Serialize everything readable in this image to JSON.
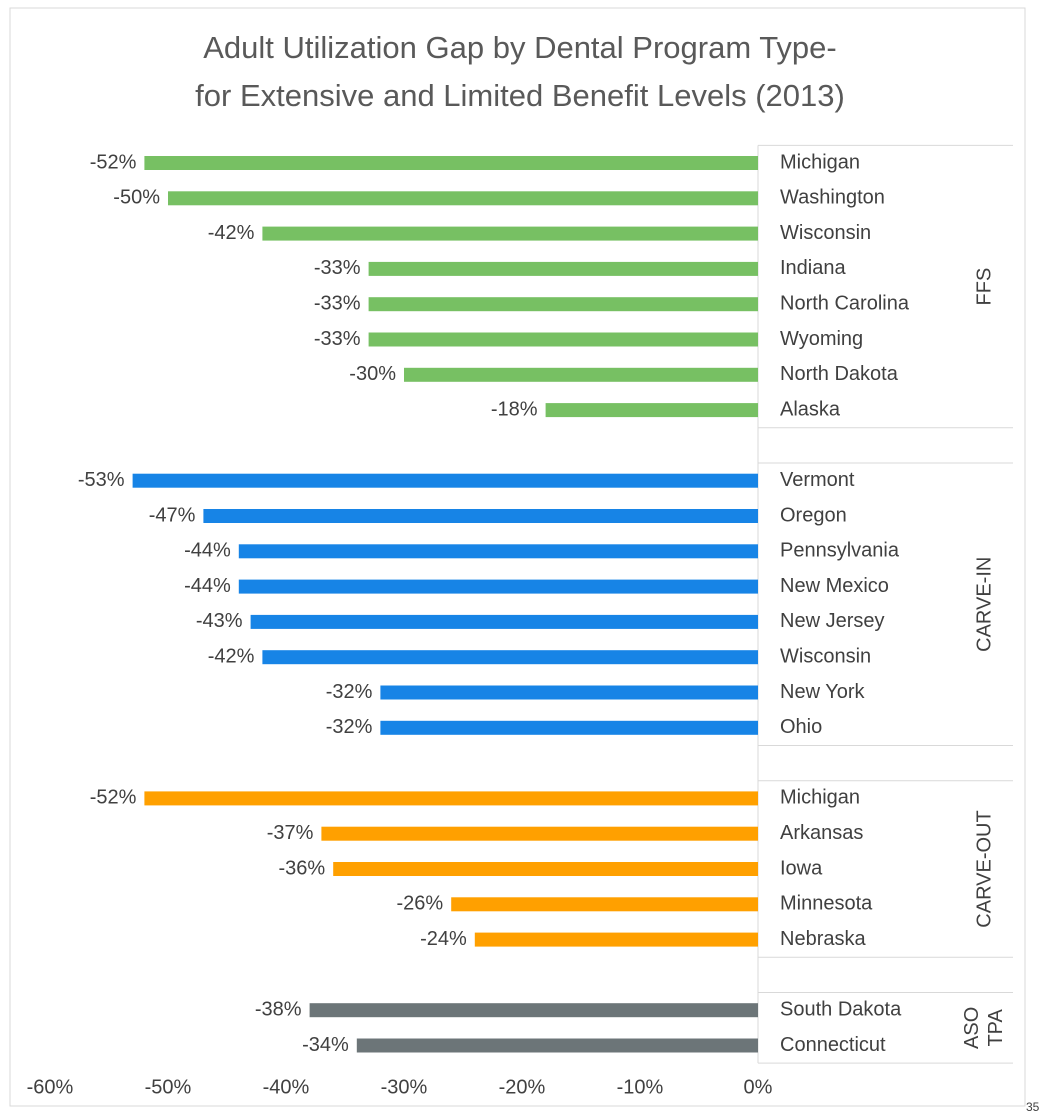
{
  "chart_data": {
    "type": "bar",
    "orientation": "horizontal",
    "title": "Adult Utilization Gap by Dental Program Type- for Extensive and Limited Benefit Levels (2013)",
    "groups": [
      {
        "name": "FFS",
        "color": "#77c063",
        "categories": [
          "Michigan",
          "Washington",
          "Wisconsin",
          "Indiana",
          "North Carolina",
          "Wyoming",
          "North Dakota",
          "Alaska"
        ],
        "values": [
          -52,
          -50,
          -42,
          -33,
          -33,
          -33,
          -30,
          -18
        ],
        "value_labels": [
          "-52%",
          "-50%",
          "-42%",
          "-33%",
          "-33%",
          "-33%",
          "-30%",
          "-18%"
        ]
      },
      {
        "name": "CARVE-IN",
        "color": "#1784e6",
        "categories": [
          "Vermont",
          "Oregon",
          "Pennsylvania",
          "New Mexico",
          "New Jersey",
          "Wisconsin",
          "New York",
          "Ohio"
        ],
        "values": [
          -53,
          -47,
          -44,
          -44,
          -43,
          -42,
          -32,
          -32
        ],
        "value_labels": [
          "-53%",
          "-47%",
          "-44%",
          "-44%",
          "-43%",
          "-42%",
          "-32%",
          "-32%"
        ]
      },
      {
        "name": "CARVE-OUT",
        "color": "#ffa000",
        "categories": [
          "Michigan",
          "Arkansas",
          "Iowa",
          "Minnesota",
          "Nebraska"
        ],
        "values": [
          -52,
          -37,
          -36,
          -26,
          -24
        ],
        "value_labels": [
          "-52%",
          "-37%",
          "-36%",
          "-26%",
          "-24%"
        ]
      },
      {
        "name": "ASO TPA",
        "color": "#6c7578",
        "categories": [
          "South Dakota",
          "Connecticut"
        ],
        "values": [
          -38,
          -34
        ],
        "value_labels": [
          "-38%",
          "-34%"
        ]
      }
    ],
    "xlim": [
      -60,
      0
    ],
    "xticks": [
      {
        "value": -60,
        "label": "-60%"
      },
      {
        "value": -50,
        "label": "-50%"
      },
      {
        "value": -40,
        "label": "-40%"
      },
      {
        "value": -30,
        "label": "-30%"
      },
      {
        "value": -20,
        "label": "-20%"
      },
      {
        "value": -10,
        "label": "-10%"
      },
      {
        "value": 0,
        "label": "0%"
      }
    ],
    "grid": false
  },
  "page_number": "35"
}
